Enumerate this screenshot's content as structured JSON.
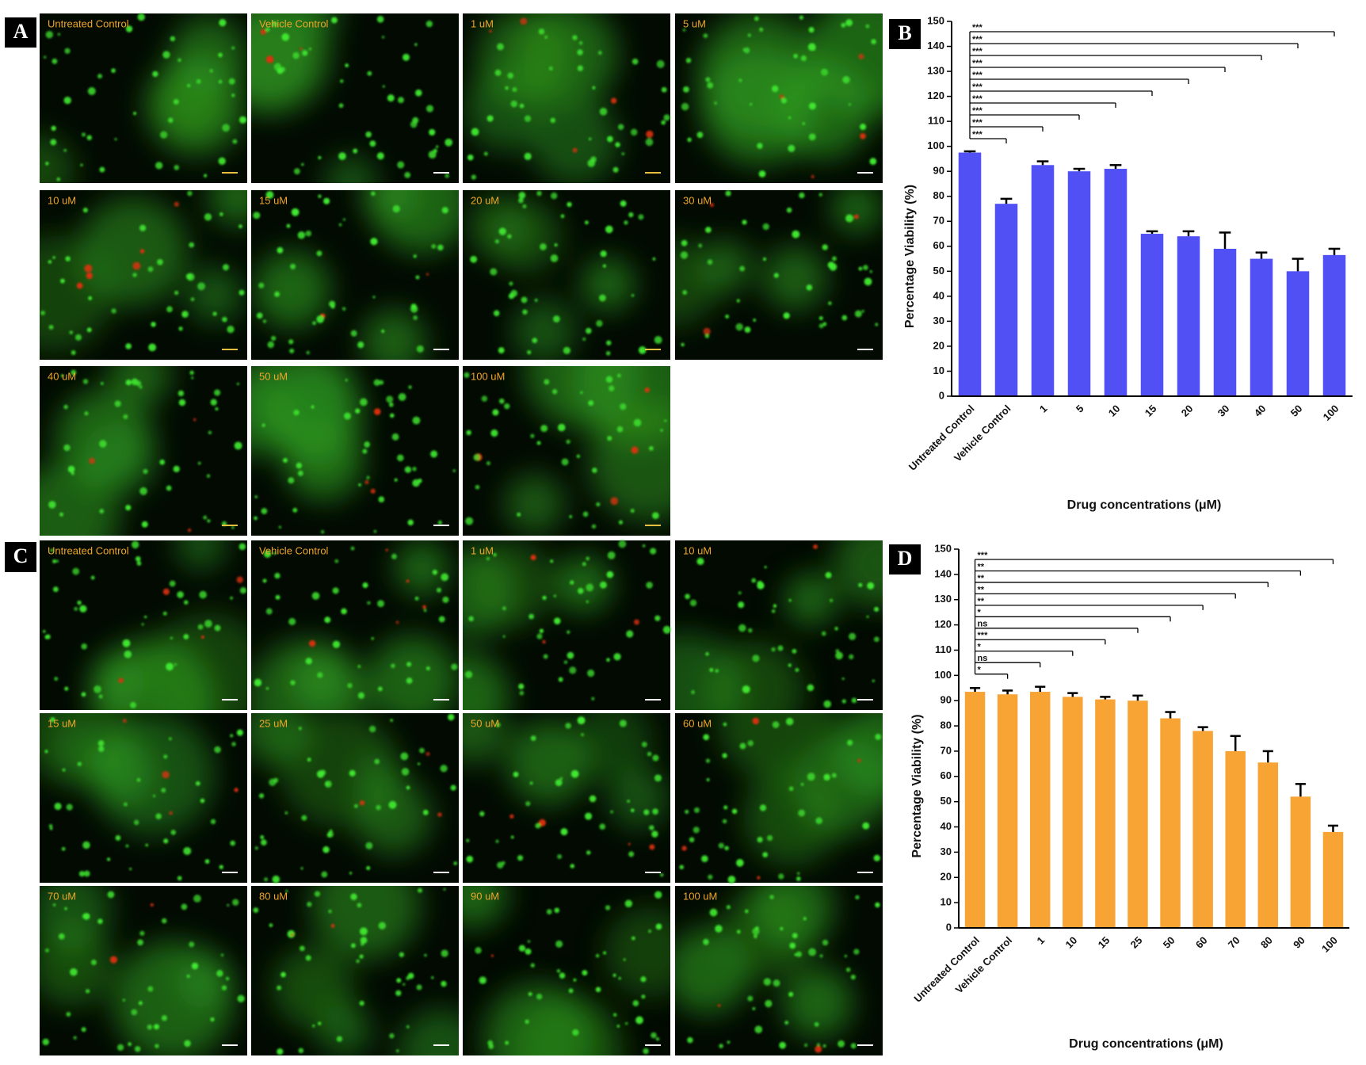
{
  "panels": [
    {
      "label": "A",
      "images": [
        "Untreated Control",
        "Vehicle Control",
        "1 uM",
        "5 uM",
        "10 uM",
        "15 uM",
        "20 uM",
        "30 uM",
        "40 uM",
        "50 uM",
        "100 uM"
      ]
    },
    {
      "label": "C",
      "images": [
        "Untreated Control",
        "Vehicle Control",
        "1 uM",
        "10 uM",
        "15 uM",
        "25 uM",
        "50 uM",
        "60 uM",
        "70 uM",
        "80 uM",
        "90 uM",
        "100 uM"
      ]
    }
  ],
  "chart_data": [
    {
      "type": "bar",
      "label": "B",
      "y_label": "Percentage Viability (%)",
      "x_label": "Drug concentrations (μM)",
      "categories": [
        "Untreated Control",
        "Vehicle Control",
        "1",
        "5",
        "10",
        "15",
        "20",
        "30",
        "40",
        "50",
        "100"
      ],
      "values": [
        97.5,
        77,
        92.5,
        90,
        91,
        65,
        64,
        59,
        55,
        50,
        56.5
      ],
      "errors": [
        0.5,
        2,
        1.5,
        1,
        1.5,
        1,
        2,
        6.5,
        2.5,
        5,
        2.5
      ],
      "significance": [
        null,
        "***",
        "***",
        "***",
        "***",
        "***",
        "***",
        "***",
        "***",
        "***",
        "***"
      ],
      "color": "#5050f5",
      "ylim": [
        0,
        150
      ],
      "yticks": [
        0,
        10,
        20,
        30,
        40,
        50,
        60,
        70,
        80,
        90,
        100,
        110,
        120,
        130,
        140,
        150
      ]
    },
    {
      "type": "bar",
      "label": "D",
      "y_label": "Percentage Viability (%)",
      "x_label": "Drug concentrations (μM)",
      "categories": [
        "Untreated Control",
        "Vehicle Control",
        "1",
        "10",
        "15",
        "25",
        "50",
        "60",
        "70",
        "80",
        "90",
        "100"
      ],
      "values": [
        93.5,
        92.5,
        93.5,
        91.5,
        90.5,
        90,
        83,
        78,
        70,
        65.5,
        52,
        38
      ],
      "errors": [
        1.5,
        1.5,
        2,
        1.5,
        1,
        2,
        2.5,
        1.5,
        6,
        4.5,
        5,
        2.5
      ],
      "significance": [
        null,
        "*",
        "ns",
        "*",
        "***",
        "ns",
        "*",
        "**",
        "**",
        "**",
        "**",
        "***"
      ],
      "color": "#f7a434",
      "ylim": [
        0,
        150
      ],
      "yticks": [
        0,
        10,
        20,
        30,
        40,
        50,
        60,
        70,
        80,
        90,
        100,
        110,
        120,
        130,
        140,
        150
      ]
    }
  ]
}
